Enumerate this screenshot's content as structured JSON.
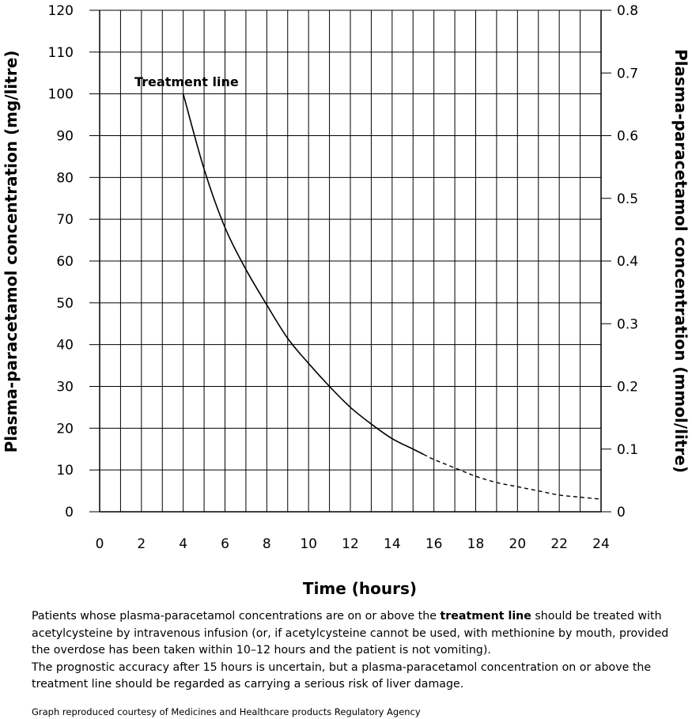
{
  "chart_data": {
    "type": "line",
    "xlabel": "Time (hours)",
    "ylabel": "Plasma-paracetamol concentration (mg/litre)",
    "ylabel_right": "Plasma-paracetamol concentration (mmol/litre)",
    "xlim": [
      0,
      24
    ],
    "ylim": [
      0,
      120
    ],
    "ylim_right": [
      0,
      0.8
    ],
    "x_ticks": [
      "0",
      "2",
      "4",
      "6",
      "8",
      "10",
      "12",
      "14",
      "16",
      "18",
      "20",
      "22",
      "24"
    ],
    "y_ticks": [
      "0",
      "10",
      "20",
      "30",
      "40",
      "50",
      "60",
      "70",
      "80",
      "90",
      "100",
      "110",
      "120"
    ],
    "y_ticks_right": [
      "0",
      "0.1",
      "0.2",
      "0.3",
      "0.4",
      "0.5",
      "0.6",
      "0.7",
      "0.8"
    ],
    "grid": true,
    "series": [
      {
        "name": "Treatment line",
        "style_solid_until_x": 15.5,
        "x": [
          4,
          5,
          6,
          7,
          8,
          9,
          10,
          11,
          12,
          13,
          14,
          15,
          16,
          17,
          18,
          19,
          20,
          21,
          22,
          23,
          24
        ],
        "y": [
          100,
          82,
          68,
          58,
          49.5,
          41.5,
          35.5,
          30,
          25,
          21,
          17.5,
          15,
          12.5,
          10.5,
          8.5,
          7,
          6,
          5,
          4,
          3.5,
          3
        ]
      }
    ],
    "annotations": [
      {
        "text": "Treatment line",
        "x": 4,
        "y": 100
      }
    ]
  },
  "caption": {
    "paragraph1_before": "Patients whose plasma-paracetamol concentrations are on or above the ",
    "paragraph1_bold": "treatment line",
    "paragraph1_after": " should be treated with acetylcysteine by intravenous infusion (or, if acetylcysteine cannot be used, with methionine by mouth, provided the overdose has been taken within 10–12 hours and the patient is not vomiting).",
    "paragraph2": "The prognostic accuracy after 15 hours is uncertain, but a plasma-paracetamol concentration on or above the treatment line should be regarded as carrying a serious risk of liver damage."
  },
  "credit": "Graph reproduced courtesy of Medicines and Healthcare products Regulatory Agency"
}
